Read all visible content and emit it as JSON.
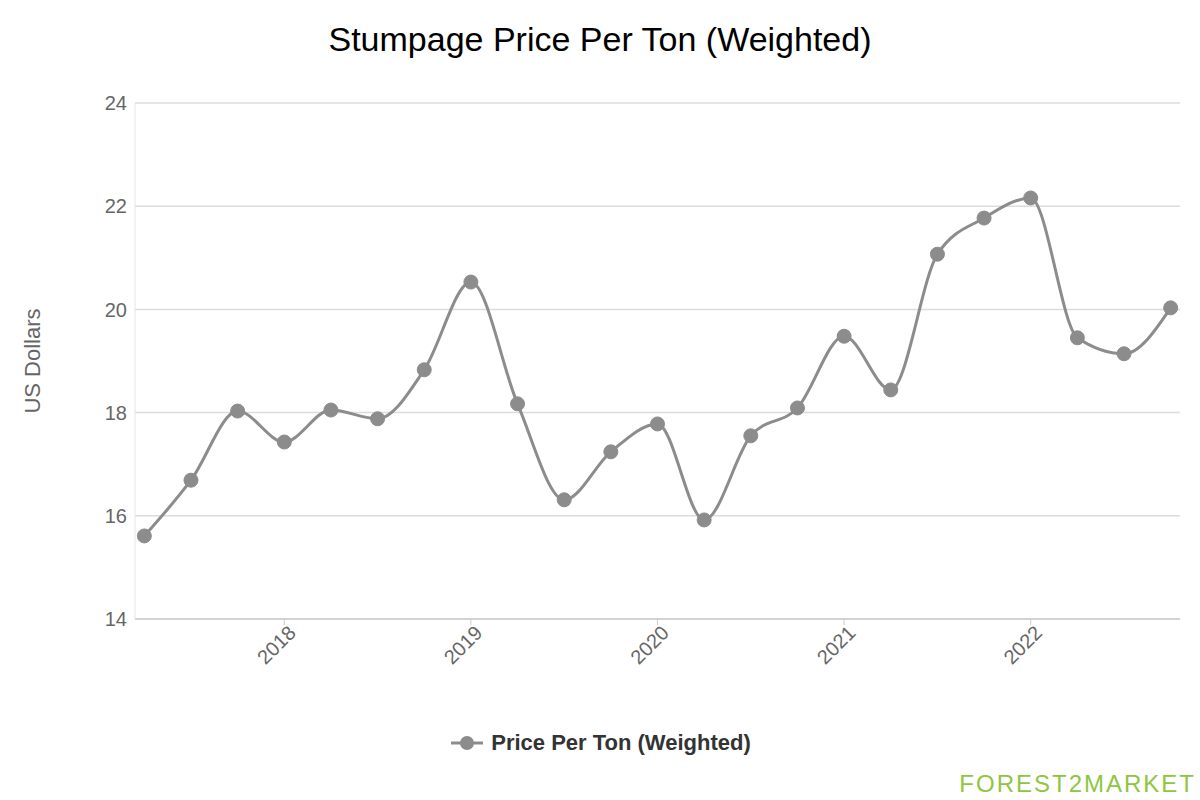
{
  "chart_data": {
    "type": "line",
    "title": "Stumpage Price Per Ton (Weighted)",
    "y_label": "US Dollars",
    "source": "FOREST2MARKET",
    "x": [
      2017.25,
      2017.5,
      2017.75,
      2018,
      2018.25,
      2018.5,
      2018.75,
      2019,
      2019.25,
      2019.5,
      2019.75,
      2020,
      2020.25,
      2020.5,
      2020.75,
      2021,
      2021.25,
      2021.5,
      2021.75,
      2022,
      2022.25,
      2022.5,
      2022.75
    ],
    "series": [
      {
        "name": "Price Per Ton (Weighted)",
        "color": "#8c8c8c",
        "marker": "circle",
        "values": [
          15.61,
          16.69,
          18.03,
          17.43,
          18.05,
          17.88,
          18.83,
          20.53,
          18.17,
          16.31,
          17.24,
          17.78,
          15.92,
          17.55,
          18.09,
          19.48,
          18.44,
          21.07,
          21.77,
          22.16,
          19.45,
          19.14,
          20.03
        ]
      }
    ],
    "xlim": [
      2017.2,
      2022.8
    ],
    "xticks": [
      2018,
      2019,
      2020,
      2021,
      2022
    ],
    "ylim": [
      14,
      24
    ],
    "yticks": [
      14,
      16,
      18,
      20,
      22,
      24
    ],
    "grid": true
  }
}
